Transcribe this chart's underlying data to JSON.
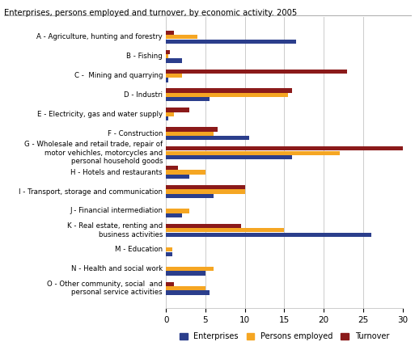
{
  "title": "Enterprises, persons employed and turnover, by economic activity. 2005",
  "categories": [
    "A - Agriculture, hunting and forestry",
    "B - Fishing",
    "C -  Mining and quarrying",
    "D - Industri",
    "E - Electricity, gas and water supply",
    "F - Construction",
    "G - Wholesale and retail trade, repair of\nmotor vehichles, motorcycles and\npersonal household goods",
    "H - Hotels and restaurants",
    "I - Transport, storage and communication",
    "J - Financial intermediation",
    "K - Real estate, renting and\nbusiness activities",
    "M - Education",
    "N - Health and social work",
    "O - Other community, social  and\npersonal service activities"
  ],
  "enterprises": [
    16.5,
    2.0,
    0.3,
    5.5,
    0.3,
    10.5,
    16.0,
    3.0,
    6.0,
    2.0,
    26.0,
    0.8,
    5.0,
    5.5
  ],
  "persons_employed": [
    4.0,
    0.3,
    2.0,
    15.5,
    1.0,
    6.0,
    22.0,
    5.0,
    10.0,
    3.0,
    15.0,
    0.8,
    6.0,
    5.0
  ],
  "turnover": [
    1.0,
    0.5,
    23.0,
    16.0,
    3.0,
    6.5,
    30.0,
    1.5,
    10.0,
    0.0,
    9.5,
    0.0,
    0.0,
    1.0
  ],
  "color_enterprises": "#2b3e8c",
  "color_persons": "#f5a623",
  "color_turnover": "#8b1a1a",
  "xlim": [
    0,
    30
  ],
  "xticks": [
    0,
    5,
    10,
    15,
    20,
    25,
    30
  ],
  "legend_labels": [
    "Enterprises",
    "Persons employed",
    "Turnover"
  ],
  "background_color": "#ffffff",
  "grid_color": "#cccccc"
}
